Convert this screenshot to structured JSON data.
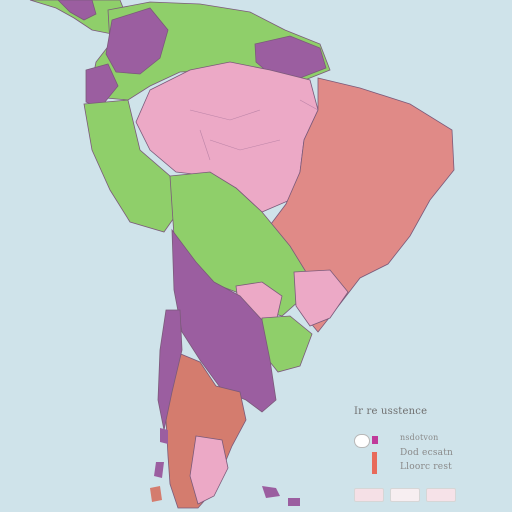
{
  "map": {
    "region": "South America",
    "colors": {
      "ocean": "#cfe3ea",
      "green": "#8fcf6a",
      "purple": "#9b5ea0",
      "light_pink": "#eca9c6",
      "salmon": "#e08a87",
      "terracotta": "#d47c6e",
      "border": "#7b5a7a"
    },
    "legend": {
      "title": "Ir re  usstence",
      "item1_label": "nsdotvon",
      "item2_label": "Dod  ecsatn",
      "item3_label": "Lloorc  rest"
    }
  }
}
